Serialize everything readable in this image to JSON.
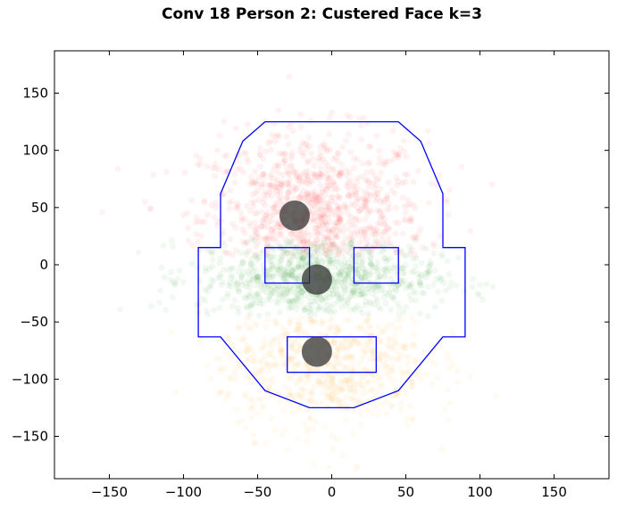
{
  "chart_data": {
    "type": "scatter",
    "title": "Conv 18 Person 2: Custered Face k=3",
    "xlabel": "",
    "ylabel": "",
    "xlim": [
      -187,
      187
    ],
    "ylim": [
      -187,
      187
    ],
    "xticks": [
      -150,
      -100,
      -50,
      0,
      50,
      100,
      150
    ],
    "yticks": [
      150,
      100,
      50,
      0,
      -50,
      -100,
      -150
    ],
    "grid": false,
    "colors": {
      "cluster_top": "#ff0000",
      "cluster_middle": "#008000",
      "cluster_bottom": "#ffa500",
      "centroid": "#333333",
      "outline": "#0000ff"
    },
    "clusters": [
      {
        "color_key": "cluster_top",
        "center": [
          -12,
          40
        ],
        "spread": [
          38,
          38
        ],
        "count": 900,
        "ylim": [
          8,
          190
        ]
      },
      {
        "color_key": "cluster_middle",
        "center": [
          -10,
          -12
        ],
        "spread": [
          40,
          18
        ],
        "count": 900,
        "ylim": [
          -45,
          22
        ]
      },
      {
        "color_key": "cluster_bottom",
        "center": [
          -5,
          -85
        ],
        "spread": [
          35,
          30
        ],
        "count": 700,
        "ylim": [
          -190,
          -45
        ]
      }
    ],
    "centroids": [
      {
        "x": -25,
        "y": 43
      },
      {
        "x": -10,
        "y": -13
      },
      {
        "x": -10,
        "y": -76
      }
    ],
    "face_outline": [
      [
        -45,
        125
      ],
      [
        45,
        125
      ],
      [
        60,
        108
      ],
      [
        75,
        62
      ],
      [
        75,
        15
      ],
      [
        90,
        15
      ],
      [
        90,
        -63
      ],
      [
        75,
        -63
      ],
      [
        45,
        -110
      ],
      [
        15,
        -125
      ],
      [
        -15,
        -125
      ],
      [
        -45,
        -110
      ],
      [
        -75,
        -63
      ],
      [
        -90,
        -63
      ],
      [
        -90,
        15
      ],
      [
        -75,
        15
      ],
      [
        -75,
        62
      ],
      [
        -60,
        108
      ],
      [
        -45,
        125
      ]
    ],
    "feature_boxes": [
      {
        "name": "left-eye-box",
        "x0": -45,
        "x1": -15,
        "y0": -16,
        "y1": 15
      },
      {
        "name": "right-eye-box",
        "x0": 15,
        "x1": 45,
        "y0": -16,
        "y1": 15
      },
      {
        "name": "mouth-box",
        "x0": -30,
        "x1": 30,
        "y0": -94,
        "y1": -63
      }
    ]
  }
}
